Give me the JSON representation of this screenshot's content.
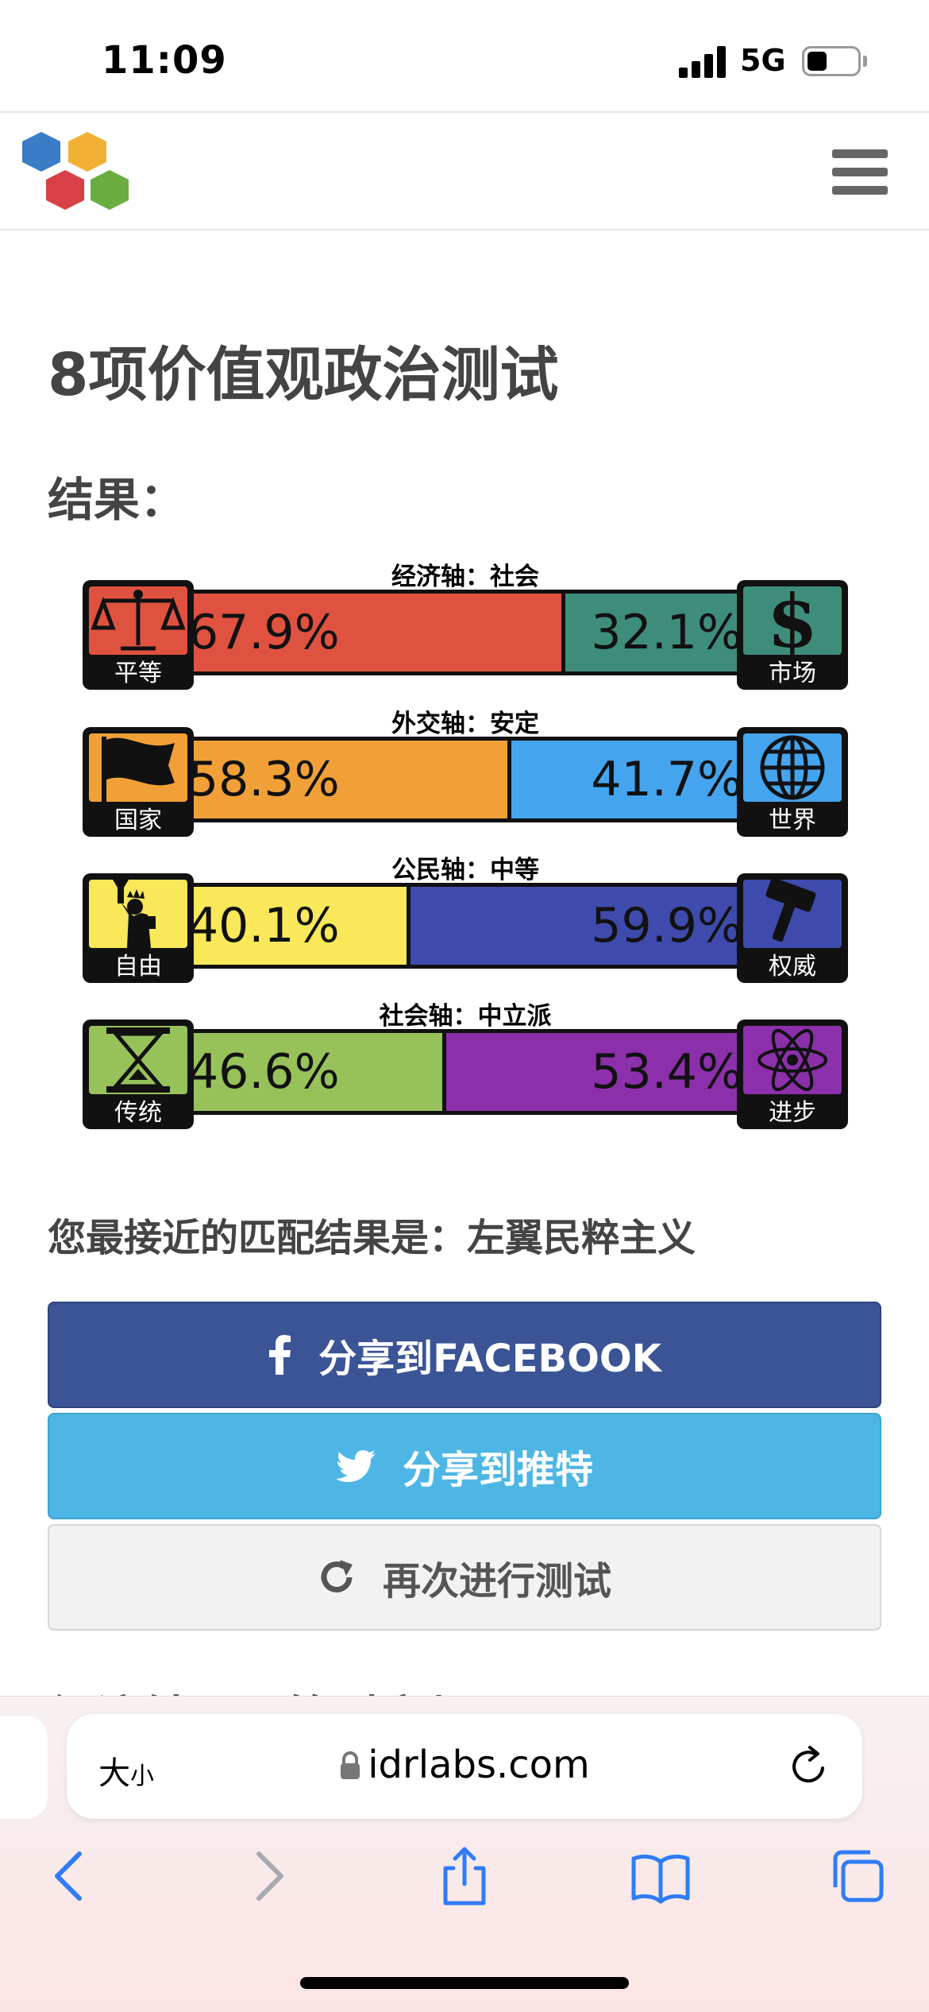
{
  "status_bar": {
    "time": "11:09",
    "network": "5G",
    "battery_fill": 0.35
  },
  "header": {
    "logo_icon": "hexagon-logo-icon",
    "menu_icon": "hamburger-menu-icon"
  },
  "main": {
    "title": "8项价值观政治测试",
    "results_label": "结果：",
    "axes": [
      {
        "label": "经济轴：社会",
        "left_label": "平等",
        "right_label": "市场",
        "left_pct": 67.9,
        "right_pct": 32.1,
        "left_text": "67.9%",
        "right_text": "32.1%",
        "left_color": "#e05240",
        "right_color": "#3e8d7b",
        "left_icon": "scales-icon",
        "right_icon": "dollar-icon"
      },
      {
        "label": "外交轴：安定",
        "left_label": "国家",
        "right_label": "世界",
        "left_pct": 58.3,
        "right_pct": 41.7,
        "left_text": "58.3%",
        "right_text": "41.7%",
        "left_color": "#f1a038",
        "right_color": "#44a4ee",
        "left_icon": "flag-icon",
        "right_icon": "globe-icon"
      },
      {
        "label": "公民轴：中等",
        "left_label": "自由",
        "right_label": "权威",
        "left_pct": 40.1,
        "right_pct": 59.9,
        "left_text": "40.1%",
        "right_text": "59.9%",
        "left_color": "#f8e85a",
        "right_color": "#3e4bac",
        "left_icon": "liberty-statue-icon",
        "right_icon": "gavel-icon"
      },
      {
        "label": "社会轴：中立派",
        "left_label": "传统",
        "right_label": "进步",
        "left_pct": 46.6,
        "right_pct": 53.4,
        "left_text": "46.6%",
        "right_text": "53.4%",
        "left_color": "#97c25a",
        "right_color": "#8c2fab",
        "left_icon": "hourglass-icon",
        "right_icon": "atom-icon"
      }
    ],
    "match_text": "您最接近的匹配结果是：左翼民粹主义",
    "buttons": {
      "facebook": "分享到FACEBOOK",
      "twitter": "分享到推特",
      "retry": "再次进行测试"
    },
    "next_heading": "经济轴：平等对市场"
  },
  "browser": {
    "text_size_big": "大",
    "text_size_small": "小",
    "url": "idrlabs.com"
  }
}
